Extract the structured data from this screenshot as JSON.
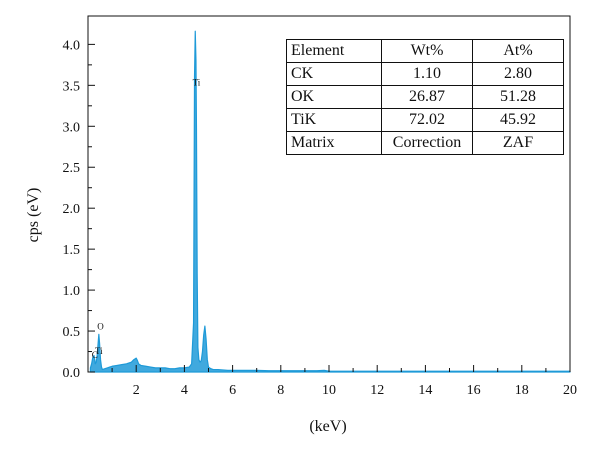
{
  "chart_data": {
    "type": "line",
    "xlabel": "(keV)",
    "ylabel": "cps (eV)",
    "xlim": [
      0,
      20
    ],
    "ylim": [
      0,
      4.2
    ],
    "xticks": [
      2,
      4,
      6,
      8,
      10,
      12,
      14,
      16,
      18,
      20
    ],
    "yticks": [
      0.0,
      0.5,
      1.0,
      1.5,
      2.0,
      2.5,
      3.0,
      3.5,
      4.0
    ],
    "ytick_labels": [
      "0.0",
      "0.5",
      "1.0",
      "1.5",
      "2.0",
      "2.5",
      "3.0",
      "3.5",
      "4.0"
    ],
    "grid": false,
    "color": "#1e9ad8",
    "series": [
      {
        "x": [
          0.1,
          0.15,
          0.2,
          0.25,
          0.28,
          0.3,
          0.34,
          0.38,
          0.42,
          0.45,
          0.48,
          0.52,
          0.56,
          0.6,
          0.7,
          0.8,
          0.9,
          1.0,
          1.2,
          1.4,
          1.6,
          1.8,
          1.9,
          2.0,
          2.05,
          2.1,
          2.2,
          2.4,
          2.6,
          2.8,
          3.0,
          3.2,
          3.4,
          3.6,
          3.8,
          4.0,
          4.2,
          4.3,
          4.38,
          4.42,
          4.45,
          4.48,
          4.5,
          4.53,
          4.56,
          4.6,
          4.65,
          4.7,
          4.75,
          4.8,
          4.85,
          4.9,
          4.95,
          5.0,
          5.1,
          5.2,
          5.4,
          5.6,
          5.8,
          6.0,
          6.5,
          7.0,
          7.5,
          8.0,
          8.5,
          9.0,
          9.5,
          9.8,
          10.0,
          11.0,
          12.0,
          13.0,
          14.0,
          15.0,
          16.0,
          17.0,
          18.0,
          19.0,
          20.0
        ],
        "y": [
          0.05,
          0.1,
          0.18,
          0.2,
          0.15,
          0.1,
          0.12,
          0.2,
          0.35,
          0.46,
          0.35,
          0.15,
          0.06,
          0.03,
          0.04,
          0.05,
          0.06,
          0.07,
          0.08,
          0.09,
          0.1,
          0.12,
          0.15,
          0.17,
          0.14,
          0.1,
          0.08,
          0.07,
          0.06,
          0.05,
          0.05,
          0.05,
          0.04,
          0.04,
          0.05,
          0.05,
          0.06,
          0.1,
          0.6,
          3.6,
          4.16,
          3.8,
          3.0,
          1.2,
          0.3,
          0.15,
          0.12,
          0.14,
          0.25,
          0.45,
          0.56,
          0.4,
          0.15,
          0.06,
          0.04,
          0.03,
          0.03,
          0.025,
          0.02,
          0.02,
          0.02,
          0.02,
          0.015,
          0.015,
          0.015,
          0.015,
          0.015,
          0.02,
          0.01,
          0.01,
          0.01,
          0.01,
          0.01,
          0.01,
          0.01,
          0.01,
          0.01,
          0.01,
          0.01
        ]
      }
    ],
    "annotations": [
      {
        "text": "Ti",
        "x": 4.5,
        "y": 3.5
      },
      {
        "text": "O",
        "x": 0.52,
        "y": 0.52
      },
      {
        "text": "Ti",
        "x": 0.45,
        "y": 0.22
      },
      {
        "text": "C",
        "x": 0.28,
        "y": 0.17
      }
    ],
    "table": {
      "headers": [
        "Element",
        "Wt%",
        "At%"
      ],
      "rows": [
        [
          "CK",
          "1.10",
          "2.80"
        ],
        [
          "OK",
          "26.87",
          "51.28"
        ],
        [
          "TiK",
          "72.02",
          "45.92"
        ],
        [
          "Matrix",
          "Correction",
          "ZAF"
        ]
      ]
    }
  }
}
